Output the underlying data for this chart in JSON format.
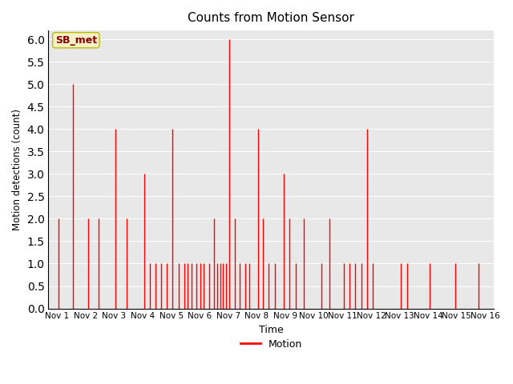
{
  "title": "Counts from Motion Sensor",
  "xlabel": "Time",
  "ylabel": "Motion detections (count)",
  "ylim": [
    0,
    6.2
  ],
  "yticks": [
    0.0,
    0.5,
    1.0,
    1.5,
    2.0,
    2.5,
    3.0,
    3.5,
    4.0,
    4.5,
    5.0,
    5.5,
    6.0
  ],
  "legend_label": "Motion",
  "line_color": "red",
  "line_width": 1.0,
  "background_color": "#e8e8e8",
  "annotation_text": "SB_met",
  "annotation_color": "#8B0000",
  "annotation_bg": "#f5f0c8",
  "spikes": [
    [
      0.05,
      2
    ],
    [
      0.55,
      5
    ],
    [
      1.1,
      2
    ],
    [
      1.45,
      2
    ],
    [
      2.05,
      4
    ],
    [
      2.45,
      2
    ],
    [
      3.05,
      3
    ],
    [
      3.25,
      1
    ],
    [
      3.45,
      1
    ],
    [
      3.65,
      1
    ],
    [
      3.85,
      1
    ],
    [
      4.05,
      4
    ],
    [
      4.25,
      1
    ],
    [
      4.45,
      1
    ],
    [
      4.58,
      1
    ],
    [
      4.72,
      1
    ],
    [
      4.88,
      1
    ],
    [
      5.02,
      1
    ],
    [
      5.12,
      1
    ],
    [
      5.32,
      1
    ],
    [
      5.5,
      2
    ],
    [
      5.62,
      1
    ],
    [
      5.72,
      1
    ],
    [
      5.82,
      1
    ],
    [
      5.92,
      1
    ],
    [
      6.02,
      6
    ],
    [
      6.22,
      2
    ],
    [
      6.4,
      1
    ],
    [
      6.58,
      1
    ],
    [
      6.72,
      1
    ],
    [
      7.05,
      4
    ],
    [
      7.22,
      2
    ],
    [
      7.42,
      1
    ],
    [
      7.62,
      1
    ],
    [
      7.95,
      3
    ],
    [
      8.15,
      2
    ],
    [
      8.35,
      1
    ],
    [
      8.65,
      2
    ],
    [
      9.25,
      1
    ],
    [
      9.55,
      2
    ],
    [
      10.05,
      1
    ],
    [
      10.25,
      1
    ],
    [
      10.45,
      1
    ],
    [
      10.65,
      1
    ],
    [
      10.85,
      4
    ],
    [
      11.05,
      1
    ],
    [
      12.05,
      1
    ],
    [
      12.25,
      1
    ],
    [
      13.05,
      1
    ],
    [
      13.95,
      1
    ],
    [
      14.75,
      1
    ]
  ],
  "xtick_positions": [
    0,
    1,
    2,
    3,
    4,
    5,
    6,
    7,
    8,
    9,
    10,
    11,
    12,
    13,
    14,
    15
  ],
  "xtick_labels": [
    "Nov 1",
    "Nov 2",
    "Nov 3",
    "Nov 4",
    "Nov 5",
    "Nov 6",
    "Nov 7",
    "Nov 8",
    "Nov 9",
    "Nov 10",
    "Nov 11",
    "Nov 12",
    "Nov 13",
    "Nov 14",
    "Nov 15",
    "Nov 16"
  ]
}
